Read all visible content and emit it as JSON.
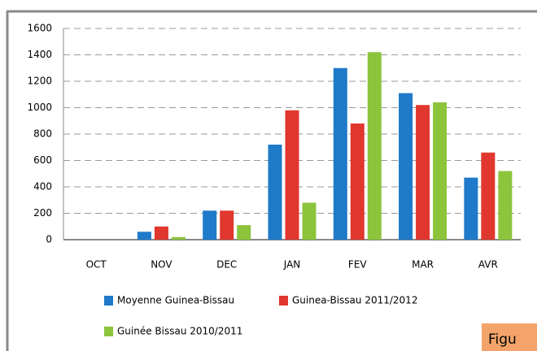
{
  "chart_data": {
    "type": "bar",
    "categories": [
      "OCT",
      "NOV",
      "DEC",
      "JAN",
      "FEV",
      "MAR",
      "AVR"
    ],
    "series": [
      {
        "name": "Moyenne Guinea-Bissau",
        "color": "#1f7ac9",
        "values": [
          0,
          60,
          220,
          720,
          1300,
          1110,
          470
        ]
      },
      {
        "name": "Guinea-Bissau 2011/2012",
        "color": "#e0372e",
        "values": [
          0,
          100,
          220,
          980,
          880,
          1020,
          660
        ]
      },
      {
        "name": "Guinée Bissau 2010/2011",
        "color": "#8cc43c",
        "values": [
          0,
          20,
          110,
          280,
          1420,
          1040,
          520
        ]
      }
    ],
    "ylim": [
      0,
      1600
    ],
    "yticks": [
      0,
      200,
      400,
      600,
      800,
      1000,
      1200,
      1400,
      1600
    ],
    "grid": true,
    "legend": "bottom"
  },
  "caption": "Figu"
}
